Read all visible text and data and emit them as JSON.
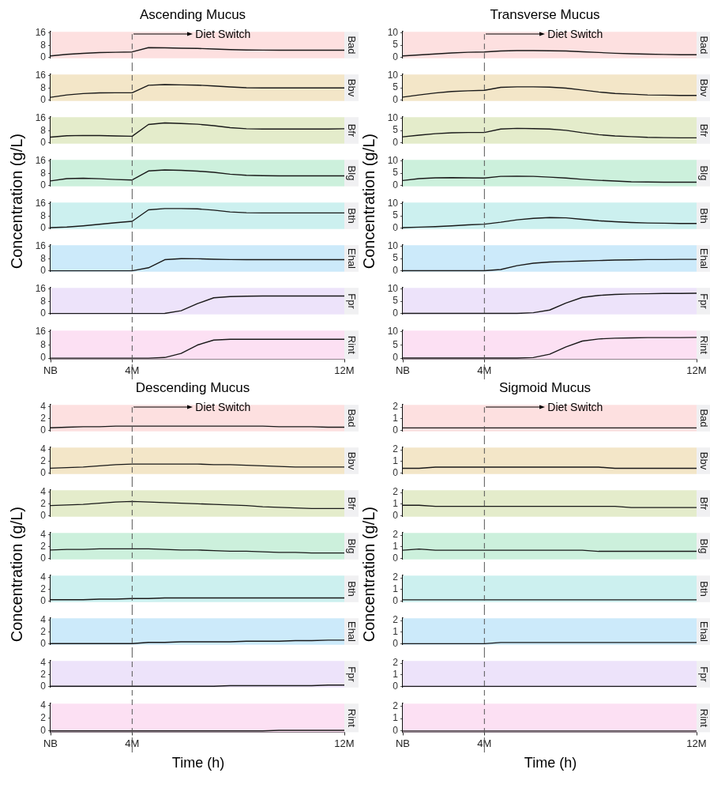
{
  "chart_data": [
    {
      "type": "line",
      "title": "Ascending Mucus",
      "ylabel": "Concentration (g/L)",
      "categories": [
        "NB",
        null,
        null,
        null,
        null,
        "4M",
        null,
        null,
        null,
        null,
        null,
        null,
        null,
        null,
        null,
        null,
        null,
        null,
        "12M"
      ],
      "ylim": [
        -0.6,
        16.8
      ],
      "yticks": [
        0,
        8,
        16
      ],
      "tick_labels": "y",
      "bands": [
        {
          "axis": "x",
          "from": "NB",
          "to": "12M",
          "color": "#fde0e0"
        }
      ],
      "ref_lines": [
        {
          "axis": "x",
          "value": "4M",
          "label": "Diet Switch",
          "line_style": "dashed"
        }
      ],
      "series": [
        {
          "name": "Bad",
          "color": "#1a1a1a",
          "values": [
            1.0,
            2.0,
            2.7,
            3.2,
            3.4,
            3.6,
            6.4,
            6.3,
            6.0,
            5.9,
            5.5,
            5.1,
            4.9,
            4.8,
            4.7,
            4.7,
            4.7,
            4.7,
            4.7
          ]
        }
      ]
    },
    {
      "type": "line",
      "categories": [
        "NB",
        null,
        null,
        null,
        null,
        "4M",
        null,
        null,
        null,
        null,
        null,
        null,
        null,
        null,
        null,
        null,
        null,
        null,
        "12M"
      ],
      "ylim": [
        -0.6,
        16.8
      ],
      "yticks": [
        0,
        8,
        16
      ],
      "tick_labels": "y",
      "bands": [
        {
          "axis": "x",
          "from": "NB",
          "to": "12M",
          "color": "#f3e6c8"
        }
      ],
      "ref_lines": [
        {
          "axis": "x",
          "value": "4M",
          "line_style": "dashed"
        }
      ],
      "series": [
        {
          "name": "Bbv",
          "color": "#1a1a1a",
          "values": [
            1.8,
            3.4,
            4.3,
            4.7,
            4.8,
            4.8,
            9.7,
            10.2,
            10.0,
            9.8,
            9.3,
            8.6,
            8.1,
            8.0,
            8.0,
            8.0,
            8.0,
            8.0,
            8.0
          ]
        }
      ]
    },
    {
      "type": "line",
      "categories": [
        "NB",
        null,
        null,
        null,
        null,
        "4M",
        null,
        null,
        null,
        null,
        null,
        null,
        null,
        null,
        null,
        null,
        null,
        null,
        "12M"
      ],
      "ylim": [
        -0.6,
        16.8
      ],
      "yticks": [
        0,
        8,
        16
      ],
      "tick_labels": "y",
      "bands": [
        {
          "axis": "x",
          "from": "NB",
          "to": "12M",
          "color": "#e4eccb"
        }
      ],
      "ref_lines": [
        {
          "axis": "x",
          "value": "4M",
          "line_style": "dashed"
        }
      ],
      "series": [
        {
          "name": "Bfr",
          "color": "#1a1a1a",
          "values": [
            3.7,
            4.6,
            4.8,
            4.7,
            4.5,
            4.3,
            12.0,
            13.0,
            12.6,
            12.2,
            11.2,
            9.9,
            9.2,
            9.0,
            9.0,
            9.0,
            9.0,
            9.0,
            9.2
          ]
        }
      ]
    },
    {
      "type": "line",
      "categories": [
        "NB",
        null,
        null,
        null,
        null,
        "4M",
        null,
        null,
        null,
        null,
        null,
        null,
        null,
        null,
        null,
        null,
        null,
        null,
        "12M"
      ],
      "ylim": [
        -0.6,
        16.8
      ],
      "yticks": [
        0,
        8,
        16
      ],
      "tick_labels": "y",
      "bands": [
        {
          "axis": "x",
          "from": "NB",
          "to": "12M",
          "color": "#ccf0dc"
        }
      ],
      "ref_lines": [
        {
          "axis": "x",
          "value": "4M",
          "line_style": "dashed"
        }
      ],
      "series": [
        {
          "name": "Blg",
          "color": "#1a1a1a",
          "values": [
            3.0,
            4.5,
            4.7,
            4.4,
            3.9,
            3.6,
            9.5,
            10.2,
            9.9,
            9.4,
            8.6,
            7.4,
            6.7,
            6.4,
            6.3,
            6.3,
            6.3,
            6.3,
            6.3
          ]
        }
      ]
    },
    {
      "type": "line",
      "categories": [
        "NB",
        null,
        null,
        null,
        null,
        "4M",
        null,
        null,
        null,
        null,
        null,
        null,
        null,
        null,
        null,
        null,
        null,
        null,
        "12M"
      ],
      "ylim": [
        -0.6,
        16.8
      ],
      "yticks": [
        0,
        8,
        16
      ],
      "tick_labels": "y",
      "bands": [
        {
          "axis": "x",
          "from": "NB",
          "to": "12M",
          "color": "#ccf0ef"
        }
      ],
      "ref_lines": [
        {
          "axis": "x",
          "value": "4M",
          "line_style": "dashed"
        }
      ],
      "series": [
        {
          "name": "Bth",
          "color": "#1a1a1a",
          "values": [
            0.3,
            0.7,
            1.5,
            2.5,
            3.6,
            4.5,
            12.0,
            12.8,
            12.8,
            12.6,
            11.8,
            10.6,
            10.1,
            10.0,
            10.0,
            10.0,
            10.0,
            10.0,
            10.0
          ]
        }
      ]
    },
    {
      "type": "line",
      "categories": [
        "NB",
        null,
        null,
        null,
        null,
        "4M",
        null,
        null,
        null,
        null,
        null,
        null,
        null,
        null,
        null,
        null,
        null,
        null,
        "12M"
      ],
      "ylim": [
        -0.6,
        16.8
      ],
      "yticks": [
        0,
        8,
        16
      ],
      "tick_labels": "y",
      "bands": [
        {
          "axis": "x",
          "from": "NB",
          "to": "12M",
          "color": "#cceafa"
        }
      ],
      "ref_lines": [
        {
          "axis": "x",
          "value": "4M",
          "line_style": "dashed"
        }
      ],
      "series": [
        {
          "name": "Ehal",
          "color": "#1a1a1a",
          "values": [
            0,
            0,
            0,
            0,
            0,
            0,
            2.0,
            7.3,
            8.0,
            7.9,
            7.6,
            7.4,
            7.3,
            7.3,
            7.3,
            7.3,
            7.3,
            7.3,
            7.3
          ]
        }
      ]
    },
    {
      "type": "line",
      "categories": [
        "NB",
        null,
        null,
        null,
        null,
        "4M",
        null,
        null,
        null,
        null,
        null,
        null,
        null,
        null,
        null,
        null,
        null,
        null,
        "12M"
      ],
      "ylim": [
        -0.6,
        16.8
      ],
      "yticks": [
        0,
        8,
        16
      ],
      "tick_labels": "y",
      "bands": [
        {
          "axis": "x",
          "from": "NB",
          "to": "12M",
          "color": "#ede3fa"
        }
      ],
      "ref_lines": [
        {
          "axis": "x",
          "value": "4M",
          "line_style": "dashed"
        }
      ],
      "series": [
        {
          "name": "Fpr",
          "color": "#1a1a1a",
          "values": [
            0,
            0,
            0,
            0,
            0,
            0,
            0,
            0.1,
            1.8,
            6.5,
            10.3,
            11.1,
            11.3,
            11.5,
            11.5,
            11.5,
            11.5,
            11.5,
            11.5
          ]
        }
      ]
    },
    {
      "type": "line",
      "categories": [
        "NB",
        null,
        null,
        null,
        null,
        "4M",
        null,
        null,
        null,
        null,
        null,
        null,
        null,
        null,
        null,
        null,
        null,
        null,
        "12M"
      ],
      "ylim": [
        -0.6,
        16.8
      ],
      "yticks": [
        0,
        8,
        16
      ],
      "bands": [
        {
          "axis": "x",
          "from": "NB",
          "to": "12M",
          "color": "#fce0f3"
        }
      ],
      "ref_lines": [
        {
          "axis": "x",
          "value": "4M",
          "line_style": "dashed"
        }
      ],
      "series": [
        {
          "name": "Rint",
          "color": "#1a1a1a",
          "values": [
            0,
            0,
            0,
            0,
            0,
            0,
            0,
            0.4,
            2.9,
            8.0,
            11.0,
            11.5,
            11.5,
            11.5,
            11.5,
            11.5,
            11.5,
            11.5,
            11.5
          ]
        }
      ]
    },
    {
      "type": "line",
      "title": "Transverse Mucus",
      "ylabel": "Concentration (g/L)",
      "categories": [
        "NB",
        null,
        null,
        null,
        null,
        "4M",
        null,
        null,
        null,
        null,
        null,
        null,
        null,
        null,
        null,
        null,
        null,
        null,
        "12M"
      ],
      "ylim": [
        -0.4,
        10.5
      ],
      "yticks": [
        0,
        5,
        10
      ],
      "tick_labels": "y",
      "bands": [
        {
          "axis": "x",
          "from": "NB",
          "to": "12M",
          "color": "#fde0e0"
        }
      ],
      "ref_lines": [
        {
          "axis": "x",
          "value": "4M",
          "label": "Diet Switch",
          "line_style": "dashed"
        }
      ],
      "series": [
        {
          "name": "Bad",
          "color": "#1a1a1a",
          "values": [
            0.6,
            1.0,
            1.4,
            1.8,
            2.1,
            2.2,
            2.6,
            2.8,
            2.8,
            2.7,
            2.6,
            2.3,
            2.0,
            1.7,
            1.5,
            1.3,
            1.2,
            1.1,
            1.1
          ]
        }
      ]
    },
    {
      "type": "line",
      "categories": [
        "NB",
        null,
        null,
        null,
        null,
        "4M",
        null,
        null,
        null,
        null,
        null,
        null,
        null,
        null,
        null,
        null,
        null,
        null,
        "12M"
      ],
      "ylim": [
        -0.4,
        10.5
      ],
      "yticks": [
        0,
        5,
        10
      ],
      "tick_labels": "y",
      "bands": [
        {
          "axis": "x",
          "from": "NB",
          "to": "12M",
          "color": "#f3e6c8"
        }
      ],
      "ref_lines": [
        {
          "axis": "x",
          "value": "4M",
          "line_style": "dashed"
        }
      ],
      "series": [
        {
          "name": "Bbv",
          "color": "#1a1a1a",
          "values": [
            1.2,
            2.1,
            2.9,
            3.5,
            3.8,
            4.0,
            5.2,
            5.4,
            5.4,
            5.3,
            4.9,
            4.1,
            3.3,
            2.7,
            2.4,
            2.1,
            2.0,
            1.9,
            1.9
          ]
        }
      ]
    },
    {
      "type": "line",
      "categories": [
        "NB",
        null,
        null,
        null,
        null,
        "4M",
        null,
        null,
        null,
        null,
        null,
        null,
        null,
        null,
        null,
        null,
        null,
        null,
        "12M"
      ],
      "ylim": [
        -0.4,
        10.5
      ],
      "yticks": [
        0,
        5,
        10
      ],
      "tick_labels": "y",
      "bands": [
        {
          "axis": "x",
          "from": "NB",
          "to": "12M",
          "color": "#e4eccb"
        }
      ],
      "ref_lines": [
        {
          "axis": "x",
          "value": "4M",
          "line_style": "dashed"
        }
      ],
      "series": [
        {
          "name": "Bfr",
          "color": "#1a1a1a",
          "values": [
            2.4,
            3.1,
            3.7,
            4.1,
            4.2,
            4.2,
            5.6,
            5.9,
            5.8,
            5.6,
            5.1,
            4.1,
            3.3,
            2.8,
            2.5,
            2.2,
            2.1,
            2.0,
            2.0
          ]
        }
      ]
    },
    {
      "type": "line",
      "categories": [
        "NB",
        null,
        null,
        null,
        null,
        "4M",
        null,
        null,
        null,
        null,
        null,
        null,
        null,
        null,
        null,
        null,
        null,
        null,
        "12M"
      ],
      "ylim": [
        -0.4,
        10.5
      ],
      "yticks": [
        0,
        5,
        10
      ],
      "tick_labels": "y",
      "bands": [
        {
          "axis": "x",
          "from": "NB",
          "to": "12M",
          "color": "#ccf0dc"
        }
      ],
      "ref_lines": [
        {
          "axis": "x",
          "value": "4M",
          "line_style": "dashed"
        }
      ],
      "series": [
        {
          "name": "Blg",
          "color": "#1a1a1a",
          "values": [
            2.0,
            2.8,
            3.1,
            3.2,
            3.1,
            3.0,
            3.7,
            3.8,
            3.7,
            3.4,
            3.0,
            2.5,
            2.1,
            1.8,
            1.5,
            1.4,
            1.3,
            1.3,
            1.3
          ]
        }
      ]
    },
    {
      "type": "line",
      "categories": [
        "NB",
        null,
        null,
        null,
        null,
        "4M",
        null,
        null,
        null,
        null,
        null,
        null,
        null,
        null,
        null,
        null,
        null,
        null,
        "12M"
      ],
      "ylim": [
        -0.4,
        10.5
      ],
      "yticks": [
        0,
        5,
        10
      ],
      "tick_labels": "y",
      "bands": [
        {
          "axis": "x",
          "from": "NB",
          "to": "12M",
          "color": "#ccf0ef"
        }
      ],
      "ref_lines": [
        {
          "axis": "x",
          "value": "4M",
          "line_style": "dashed"
        }
      ],
      "series": [
        {
          "name": "Bth",
          "color": "#1a1a1a",
          "values": [
            0.2,
            0.4,
            0.6,
            0.9,
            1.3,
            1.6,
            2.4,
            3.4,
            4.0,
            4.3,
            4.2,
            3.6,
            3.0,
            2.6,
            2.3,
            2.1,
            2.0,
            1.9,
            1.9
          ]
        }
      ]
    },
    {
      "type": "line",
      "categories": [
        "NB",
        null,
        null,
        null,
        null,
        "4M",
        null,
        null,
        null,
        null,
        null,
        null,
        null,
        null,
        null,
        null,
        null,
        null,
        "12M"
      ],
      "ylim": [
        -0.4,
        10.5
      ],
      "yticks": [
        0,
        5,
        10
      ],
      "tick_labels": "y",
      "bands": [
        {
          "axis": "x",
          "from": "NB",
          "to": "12M",
          "color": "#cceafa"
        }
      ],
      "ref_lines": [
        {
          "axis": "x",
          "value": "4M",
          "line_style": "dashed"
        }
      ],
      "series": [
        {
          "name": "Ehal",
          "color": "#1a1a1a",
          "values": [
            0,
            0,
            0,
            0,
            0,
            0,
            0.5,
            2.1,
            3.1,
            3.6,
            3.8,
            4.0,
            4.2,
            4.4,
            4.5,
            4.6,
            4.6,
            4.7,
            4.7
          ]
        }
      ]
    },
    {
      "type": "line",
      "categories": [
        "NB",
        null,
        null,
        null,
        null,
        "4M",
        null,
        null,
        null,
        null,
        null,
        null,
        null,
        null,
        null,
        null,
        null,
        null,
        "12M"
      ],
      "ylim": [
        -0.4,
        10.5
      ],
      "yticks": [
        0,
        5,
        10
      ],
      "tick_labels": "y",
      "bands": [
        {
          "axis": "x",
          "from": "NB",
          "to": "12M",
          "color": "#ede3fa"
        }
      ],
      "ref_lines": [
        {
          "axis": "x",
          "value": "4M",
          "line_style": "dashed"
        }
      ],
      "series": [
        {
          "name": "Fpr",
          "color": "#1a1a1a",
          "values": [
            0,
            0,
            0,
            0,
            0,
            0,
            0,
            0,
            0.3,
            1.4,
            4.3,
            6.6,
            7.4,
            7.8,
            8.0,
            8.1,
            8.2,
            8.2,
            8.3
          ]
        }
      ]
    },
    {
      "type": "line",
      "categories": [
        "NB",
        null,
        null,
        null,
        null,
        "4M",
        null,
        null,
        null,
        null,
        null,
        null,
        null,
        null,
        null,
        null,
        null,
        null,
        "12M"
      ],
      "ylim": [
        -0.4,
        10.5
      ],
      "yticks": [
        0,
        5,
        10
      ],
      "bands": [
        {
          "axis": "x",
          "from": "NB",
          "to": "12M",
          "color": "#fce0f3"
        }
      ],
      "ref_lines": [
        {
          "axis": "x",
          "value": "4M",
          "line_style": "dashed"
        }
      ],
      "series": [
        {
          "name": "Rint",
          "color": "#1a1a1a",
          "values": [
            0,
            0,
            0,
            0,
            0,
            0,
            0,
            0,
            0.2,
            1.5,
            4.3,
            6.5,
            7.3,
            7.6,
            7.7,
            7.8,
            7.8,
            7.8,
            7.9
          ]
        }
      ]
    },
    {
      "type": "line",
      "title": "Descending Mucus",
      "ylabel": "Concentration (g/L)",
      "categories": [
        "NB",
        null,
        null,
        null,
        null,
        "4M",
        null,
        null,
        null,
        null,
        null,
        null,
        null,
        null,
        null,
        null,
        null,
        null,
        "12M"
      ],
      "ylim": [
        -0.2,
        4.3
      ],
      "yticks": [
        0,
        2,
        4
      ],
      "tick_labels": "y",
      "bands": [
        {
          "axis": "x",
          "from": "NB",
          "to": "12M",
          "color": "#fde0e0"
        }
      ],
      "ref_lines": [
        {
          "axis": "x",
          "value": "4M",
          "label": "Diet Switch",
          "line_style": "dashed"
        }
      ],
      "series": [
        {
          "name": "Bad",
          "color": "#1a1a1a",
          "values": [
            0.4,
            0.5,
            0.6,
            0.6,
            0.7,
            0.7,
            0.7,
            0.7,
            0.7,
            0.7,
            0.7,
            0.7,
            0.7,
            0.7,
            0.6,
            0.6,
            0.6,
            0.5,
            0.5
          ]
        }
      ]
    },
    {
      "type": "line",
      "categories": [
        "NB",
        null,
        null,
        null,
        null,
        "4M",
        null,
        null,
        null,
        null,
        null,
        null,
        null,
        null,
        null,
        null,
        null,
        null,
        "12M"
      ],
      "ylim": [
        -0.2,
        4.3
      ],
      "yticks": [
        0,
        2,
        4
      ],
      "tick_labels": "y",
      "bands": [
        {
          "axis": "x",
          "from": "NB",
          "to": "12M",
          "color": "#f3e6c8"
        }
      ],
      "ref_lines": [
        {
          "axis": "x",
          "value": "4M",
          "line_style": "dashed"
        }
      ],
      "series": [
        {
          "name": "Bbv",
          "color": "#1a1a1a",
          "values": [
            0.8,
            0.9,
            1.0,
            1.2,
            1.4,
            1.5,
            1.5,
            1.5,
            1.5,
            1.5,
            1.4,
            1.4,
            1.3,
            1.2,
            1.1,
            1.0,
            1.0,
            1.0,
            1.0
          ]
        }
      ]
    },
    {
      "type": "line",
      "categories": [
        "NB",
        null,
        null,
        null,
        null,
        "4M",
        null,
        null,
        null,
        null,
        null,
        null,
        null,
        null,
        null,
        null,
        null,
        null,
        "12M"
      ],
      "ylim": [
        -0.2,
        4.3
      ],
      "yticks": [
        0,
        2,
        4
      ],
      "tick_labels": "y",
      "bands": [
        {
          "axis": "x",
          "from": "NB",
          "to": "12M",
          "color": "#e4eccb"
        }
      ],
      "ref_lines": [
        {
          "axis": "x",
          "value": "4M",
          "line_style": "dashed"
        }
      ],
      "series": [
        {
          "name": "Bfr",
          "color": "#1a1a1a",
          "values": [
            1.7,
            1.8,
            1.9,
            2.1,
            2.3,
            2.4,
            2.3,
            2.2,
            2.1,
            2.0,
            1.9,
            1.8,
            1.7,
            1.5,
            1.4,
            1.3,
            1.2,
            1.2,
            1.2
          ]
        }
      ]
    },
    {
      "type": "line",
      "categories": [
        "NB",
        null,
        null,
        null,
        null,
        "4M",
        null,
        null,
        null,
        null,
        null,
        null,
        null,
        null,
        null,
        null,
        null,
        null,
        "12M"
      ],
      "ylim": [
        -0.2,
        4.3
      ],
      "yticks": [
        0,
        2,
        4
      ],
      "tick_labels": "y",
      "bands": [
        {
          "axis": "x",
          "from": "NB",
          "to": "12M",
          "color": "#ccf0dc"
        }
      ],
      "ref_lines": [
        {
          "axis": "x",
          "value": "4M",
          "line_style": "dashed"
        }
      ],
      "series": [
        {
          "name": "Blg",
          "color": "#1a1a1a",
          "values": [
            1.4,
            1.5,
            1.5,
            1.6,
            1.6,
            1.6,
            1.6,
            1.5,
            1.4,
            1.4,
            1.3,
            1.2,
            1.2,
            1.1,
            1.0,
            1.0,
            0.9,
            0.9,
            0.9
          ]
        }
      ]
    },
    {
      "type": "line",
      "categories": [
        "NB",
        null,
        null,
        null,
        null,
        "4M",
        null,
        null,
        null,
        null,
        null,
        null,
        null,
        null,
        null,
        null,
        null,
        null,
        "12M"
      ],
      "ylim": [
        -0.2,
        4.3
      ],
      "yticks": [
        0,
        2,
        4
      ],
      "tick_labels": "y",
      "bands": [
        {
          "axis": "x",
          "from": "NB",
          "to": "12M",
          "color": "#ccf0ef"
        }
      ],
      "ref_lines": [
        {
          "axis": "x",
          "value": "4M",
          "line_style": "dashed"
        }
      ],
      "series": [
        {
          "name": "Bth",
          "color": "#1a1a1a",
          "values": [
            0.2,
            0.2,
            0.2,
            0.3,
            0.3,
            0.4,
            0.4,
            0.5,
            0.5,
            0.5,
            0.5,
            0.5,
            0.5,
            0.5,
            0.5,
            0.5,
            0.5,
            0.5,
            0.5
          ]
        }
      ]
    },
    {
      "type": "line",
      "categories": [
        "NB",
        null,
        null,
        null,
        null,
        "4M",
        null,
        null,
        null,
        null,
        null,
        null,
        null,
        null,
        null,
        null,
        null,
        null,
        "12M"
      ],
      "ylim": [
        -0.2,
        4.3
      ],
      "yticks": [
        0,
        2,
        4
      ],
      "tick_labels": "y",
      "bands": [
        {
          "axis": "x",
          "from": "NB",
          "to": "12M",
          "color": "#cceafa"
        }
      ],
      "ref_lines": [
        {
          "axis": "x",
          "value": "4M",
          "line_style": "dashed"
        }
      ],
      "series": [
        {
          "name": "Ehal",
          "color": "#1a1a1a",
          "values": [
            0,
            0,
            0,
            0,
            0,
            0,
            0.2,
            0.2,
            0.3,
            0.3,
            0.3,
            0.3,
            0.4,
            0.4,
            0.4,
            0.5,
            0.5,
            0.6,
            0.6
          ]
        }
      ]
    },
    {
      "type": "line",
      "categories": [
        "NB",
        null,
        null,
        null,
        null,
        "4M",
        null,
        null,
        null,
        null,
        null,
        null,
        null,
        null,
        null,
        null,
        null,
        null,
        "12M"
      ],
      "ylim": [
        -0.2,
        4.3
      ],
      "yticks": [
        0,
        2,
        4
      ],
      "tick_labels": "y",
      "bands": [
        {
          "axis": "x",
          "from": "NB",
          "to": "12M",
          "color": "#ede3fa"
        }
      ],
      "ref_lines": [
        {
          "axis": "x",
          "value": "4M",
          "line_style": "dashed"
        }
      ],
      "series": [
        {
          "name": "Fpr",
          "color": "#1a1a1a",
          "values": [
            0,
            0,
            0,
            0,
            0,
            0,
            0,
            0,
            0,
            0,
            0,
            0.1,
            0.1,
            0.1,
            0.1,
            0.1,
            0.1,
            0.2,
            0.2
          ]
        }
      ]
    },
    {
      "type": "line",
      "xlabel": "Time (h)",
      "categories": [
        "NB",
        null,
        null,
        null,
        null,
        "4M",
        null,
        null,
        null,
        null,
        null,
        null,
        null,
        null,
        null,
        null,
        null,
        null,
        "12M"
      ],
      "ylim": [
        -0.2,
        4.3
      ],
      "yticks": [
        0,
        2,
        4
      ],
      "bands": [
        {
          "axis": "x",
          "from": "NB",
          "to": "12M",
          "color": "#fce0f3"
        }
      ],
      "ref_lines": [
        {
          "axis": "x",
          "value": "4M",
          "line_style": "dashed"
        }
      ],
      "series": [
        {
          "name": "Rint",
          "color": "#1a1a1a",
          "values": [
            0,
            0,
            0,
            0,
            0,
            0,
            0,
            0,
            0,
            0,
            0,
            0,
            0,
            0,
            0.1,
            0.1,
            0.1,
            0.1,
            0.1
          ]
        }
      ]
    },
    {
      "type": "line",
      "title": "Sigmoid Mucus",
      "ylabel": "Concentration (g/L)",
      "categories": [
        "NB",
        null,
        null,
        null,
        null,
        "4M",
        null,
        null,
        null,
        null,
        null,
        null,
        null,
        null,
        null,
        null,
        null,
        null,
        "12M"
      ],
      "ylim": [
        -0.1,
        2.2
      ],
      "yticks": [
        0,
        1,
        2
      ],
      "tick_labels": "y",
      "bands": [
        {
          "axis": "x",
          "from": "NB",
          "to": "12M",
          "color": "#fde0e0"
        }
      ],
      "ref_lines": [
        {
          "axis": "x",
          "value": "4M",
          "label": "Diet Switch",
          "line_style": "dashed"
        }
      ],
      "series": [
        {
          "name": "Bad",
          "color": "#1a1a1a",
          "values": [
            0.2,
            0.2,
            0.2,
            0.2,
            0.2,
            0.2,
            0.2,
            0.2,
            0.2,
            0.2,
            0.2,
            0.2,
            0.2,
            0.2,
            0.2,
            0.2,
            0.2,
            0.2,
            0.2
          ]
        }
      ]
    },
    {
      "type": "line",
      "categories": [
        "NB",
        null,
        null,
        null,
        null,
        "4M",
        null,
        null,
        null,
        null,
        null,
        null,
        null,
        null,
        null,
        null,
        null,
        null,
        "12M"
      ],
      "ylim": [
        -0.1,
        2.2
      ],
      "yticks": [
        0,
        1,
        2
      ],
      "tick_labels": "y",
      "bands": [
        {
          "axis": "x",
          "from": "NB",
          "to": "12M",
          "color": "#f3e6c8"
        }
      ],
      "ref_lines": [
        {
          "axis": "x",
          "value": "4M",
          "line_style": "dashed"
        }
      ],
      "series": [
        {
          "name": "Bbv",
          "color": "#1a1a1a",
          "values": [
            0.4,
            0.4,
            0.5,
            0.5,
            0.5,
            0.5,
            0.5,
            0.5,
            0.5,
            0.5,
            0.5,
            0.5,
            0.5,
            0.4,
            0.4,
            0.4,
            0.4,
            0.4,
            0.4
          ]
        }
      ]
    },
    {
      "type": "line",
      "categories": [
        "NB",
        null,
        null,
        null,
        null,
        "4M",
        null,
        null,
        null,
        null,
        null,
        null,
        null,
        null,
        null,
        null,
        null,
        null,
        "12M"
      ],
      "ylim": [
        -0.1,
        2.2
      ],
      "yticks": [
        0,
        1,
        2
      ],
      "tick_labels": "y",
      "bands": [
        {
          "axis": "x",
          "from": "NB",
          "to": "12M",
          "color": "#e4eccb"
        }
      ],
      "ref_lines": [
        {
          "axis": "x",
          "value": "4M",
          "line_style": "dashed"
        }
      ],
      "series": [
        {
          "name": "Bfr",
          "color": "#1a1a1a",
          "values": [
            0.9,
            0.9,
            0.8,
            0.8,
            0.8,
            0.8,
            0.8,
            0.8,
            0.8,
            0.8,
            0.8,
            0.8,
            0.8,
            0.8,
            0.7,
            0.7,
            0.7,
            0.7,
            0.7
          ]
        }
      ]
    },
    {
      "type": "line",
      "categories": [
        "NB",
        null,
        null,
        null,
        null,
        "4M",
        null,
        null,
        null,
        null,
        null,
        null,
        null,
        null,
        null,
        null,
        null,
        null,
        "12M"
      ],
      "ylim": [
        -0.1,
        2.2
      ],
      "yticks": [
        0,
        1,
        2
      ],
      "tick_labels": "y",
      "bands": [
        {
          "axis": "x",
          "from": "NB",
          "to": "12M",
          "color": "#ccf0dc"
        }
      ],
      "ref_lines": [
        {
          "axis": "x",
          "value": "4M",
          "line_style": "dashed"
        }
      ],
      "series": [
        {
          "name": "Blg",
          "color": "#1a1a1a",
          "values": [
            0.7,
            0.8,
            0.7,
            0.7,
            0.7,
            0.7,
            0.7,
            0.7,
            0.7,
            0.7,
            0.7,
            0.7,
            0.6,
            0.6,
            0.6,
            0.6,
            0.6,
            0.6,
            0.6
          ]
        }
      ]
    },
    {
      "type": "line",
      "categories": [
        "NB",
        null,
        null,
        null,
        null,
        "4M",
        null,
        null,
        null,
        null,
        null,
        null,
        null,
        null,
        null,
        null,
        null,
        null,
        "12M"
      ],
      "ylim": [
        -0.1,
        2.2
      ],
      "yticks": [
        0,
        1,
        2
      ],
      "tick_labels": "y",
      "bands": [
        {
          "axis": "x",
          "from": "NB",
          "to": "12M",
          "color": "#ccf0ef"
        }
      ],
      "ref_lines": [
        {
          "axis": "x",
          "value": "4M",
          "line_style": "dashed"
        }
      ],
      "series": [
        {
          "name": "Bth",
          "color": "#1a1a1a",
          "values": [
            0.1,
            0.1,
            0.1,
            0.1,
            0.1,
            0.1,
            0.1,
            0.1,
            0.1,
            0.1,
            0.1,
            0.1,
            0.1,
            0.1,
            0.1,
            0.1,
            0.1,
            0.1,
            0.1
          ]
        }
      ]
    },
    {
      "type": "line",
      "categories": [
        "NB",
        null,
        null,
        null,
        null,
        "4M",
        null,
        null,
        null,
        null,
        null,
        null,
        null,
        null,
        null,
        null,
        null,
        null,
        "12M"
      ],
      "ylim": [
        -0.1,
        2.2
      ],
      "yticks": [
        0,
        1,
        2
      ],
      "tick_labels": "y",
      "bands": [
        {
          "axis": "x",
          "from": "NB",
          "to": "12M",
          "color": "#cceafa"
        }
      ],
      "ref_lines": [
        {
          "axis": "x",
          "value": "4M",
          "line_style": "dashed"
        }
      ],
      "series": [
        {
          "name": "Ehal",
          "color": "#1a1a1a",
          "values": [
            0,
            0,
            0,
            0,
            0,
            0,
            0.1,
            0.1,
            0.1,
            0.1,
            0.1,
            0.1,
            0.1,
            0.1,
            0.1,
            0.1,
            0.1,
            0.1,
            0.1
          ]
        }
      ]
    },
    {
      "type": "line",
      "categories": [
        "NB",
        null,
        null,
        null,
        null,
        "4M",
        null,
        null,
        null,
        null,
        null,
        null,
        null,
        null,
        null,
        null,
        null,
        null,
        "12M"
      ],
      "ylim": [
        -0.1,
        2.2
      ],
      "yticks": [
        0,
        1,
        2
      ],
      "tick_labels": "y",
      "bands": [
        {
          "axis": "x",
          "from": "NB",
          "to": "12M",
          "color": "#ede3fa"
        }
      ],
      "ref_lines": [
        {
          "axis": "x",
          "value": "4M",
          "line_style": "dashed"
        }
      ],
      "series": [
        {
          "name": "Fpr",
          "color": "#1a1a1a",
          "values": [
            0,
            0,
            0,
            0,
            0,
            0,
            0,
            0,
            0,
            0,
            0,
            0,
            0,
            0,
            0,
            0,
            0,
            0,
            0
          ]
        }
      ]
    },
    {
      "type": "line",
      "xlabel": "Time (h)",
      "categories": [
        "NB",
        null,
        null,
        null,
        null,
        "4M",
        null,
        null,
        null,
        null,
        null,
        null,
        null,
        null,
        null,
        null,
        null,
        null,
        "12M"
      ],
      "ylim": [
        -0.1,
        2.2
      ],
      "yticks": [
        0,
        1,
        2
      ],
      "bands": [
        {
          "axis": "x",
          "from": "NB",
          "to": "12M",
          "color": "#fce0f3"
        }
      ],
      "ref_lines": [
        {
          "axis": "x",
          "value": "4M",
          "line_style": "dashed"
        }
      ],
      "series": [
        {
          "name": "Rint",
          "color": "#1a1a1a",
          "values": [
            0,
            0,
            0,
            0,
            0,
            0,
            0,
            0,
            0,
            0,
            0,
            0,
            0,
            0,
            0,
            0,
            0,
            0,
            0
          ]
        }
      ]
    }
  ]
}
